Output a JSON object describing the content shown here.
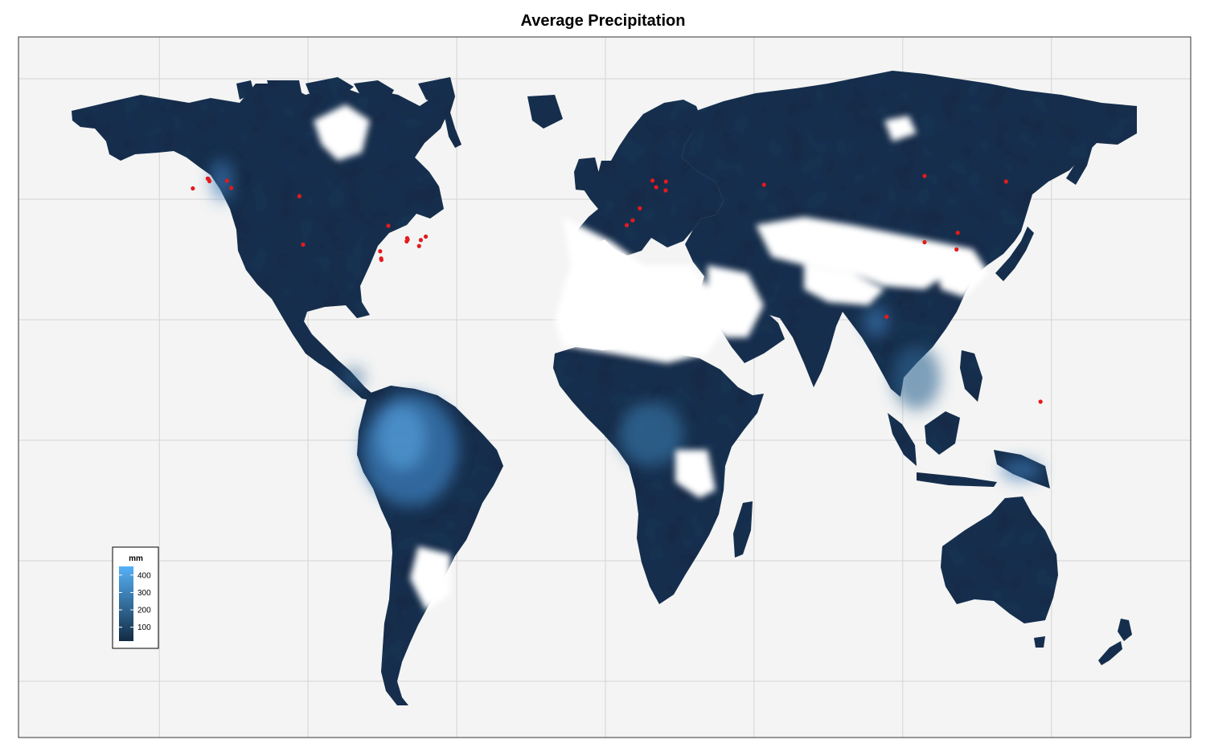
{
  "title": "Average Precipitation",
  "colors": {
    "panel_bg": "#f4f4f4",
    "grid": "#d4d4d4",
    "land_dark": "#152a3f",
    "land_mid": "#21446a",
    "land_wet": "#3a7bb8",
    "land_wettest": "#5aa6e2",
    "station": "#e41a1c",
    "border": "#333333"
  },
  "legend": {
    "title": "mm",
    "ticks": [
      {
        "label": "400",
        "value": 400
      },
      {
        "label": "300",
        "value": 300
      },
      {
        "label": "200",
        "value": 200
      },
      {
        "label": "100",
        "value": 100
      }
    ],
    "min": 20,
    "max": 450,
    "colors": [
      "#132b43",
      "#56b1f7"
    ]
  },
  "stations": [
    {
      "lon": -160.5,
      "lat": 70.3
    },
    {
      "lon": -160.2,
      "lat": 70.0
    },
    {
      "lon": -159.8,
      "lat": 69.0
    },
    {
      "lon": -152.7,
      "lat": 69.2
    },
    {
      "lon": -166.5,
      "lat": 65.4
    },
    {
      "lon": -151.0,
      "lat": 65.6
    },
    {
      "lon": -123.5,
      "lat": 61.5
    },
    {
      "lon": -87.6,
      "lat": 46.8
    },
    {
      "lon": -80.0,
      "lat": 40.6
    },
    {
      "lon": -79.8,
      "lat": 39.9
    },
    {
      "lon": -80.2,
      "lat": 39.0
    },
    {
      "lon": -72.5,
      "lat": 41.4
    },
    {
      "lon": -74.5,
      "lat": 39.7
    },
    {
      "lon": -75.2,
      "lat": 36.7
    },
    {
      "lon": -90.9,
      "lat": 34.1
    },
    {
      "lon": -90.5,
      "lat": 30.5
    },
    {
      "lon": -90.4,
      "lat": 29.8
    },
    {
      "lon": -122.0,
      "lat": 37.4
    },
    {
      "lon": 19.0,
      "lat": 69.3
    },
    {
      "lon": 24.4,
      "lat": 68.8
    },
    {
      "lon": 20.5,
      "lat": 66.0
    },
    {
      "lon": 24.3,
      "lat": 64.4
    },
    {
      "lon": 13.9,
      "lat": 55.5
    },
    {
      "lon": 11.0,
      "lat": 49.5
    },
    {
      "lon": 8.6,
      "lat": 47.1
    },
    {
      "lon": 64.0,
      "lat": 67.2
    },
    {
      "lon": 128.8,
      "lat": 71.6
    },
    {
      "lon": 161.7,
      "lat": 68.8
    },
    {
      "lon": 142.2,
      "lat": 43.3
    },
    {
      "lon": 128.8,
      "lat": 38.6
    },
    {
      "lon": 141.7,
      "lat": 35.0
    },
    {
      "lon": 113.5,
      "lat": 1.5
    },
    {
      "lon": 175.6,
      "lat": -40.8
    }
  ]
}
